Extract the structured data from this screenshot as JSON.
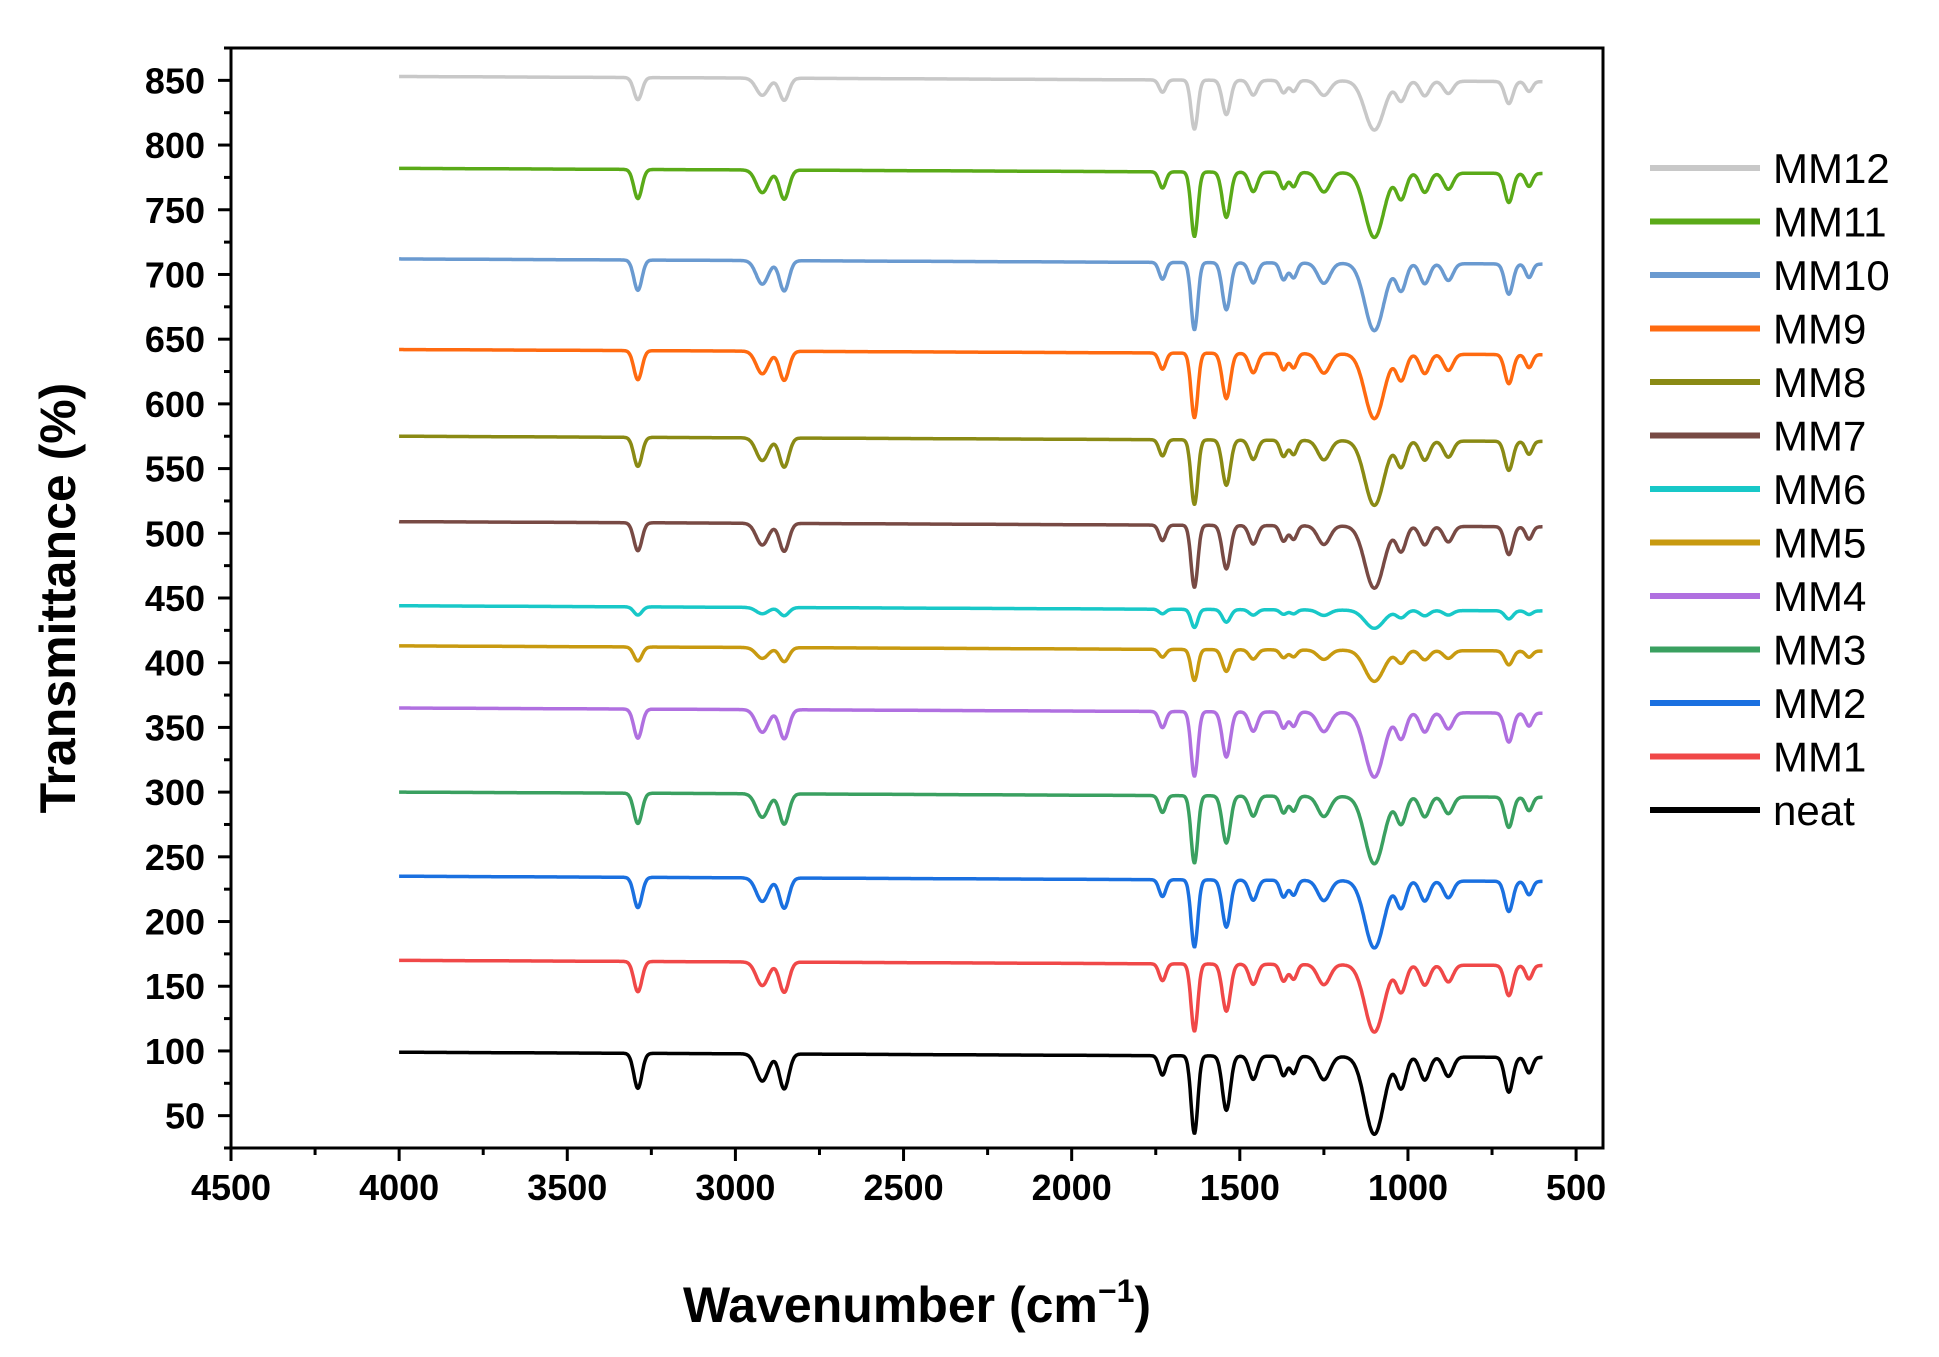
{
  "chart_data": {
    "type": "line",
    "title": "",
    "xlabel": "Wavenumber (cm",
    "xlabel_sup": "−1",
    "xlabel_close": ")",
    "ylabel": "Transmittance (%)",
    "xlim": [
      4500,
      420
    ],
    "ylim": [
      25,
      875
    ],
    "xticks": [
      4500,
      4000,
      3500,
      3000,
      2500,
      2000,
      1500,
      1000,
      500
    ],
    "xtick_labels": [
      "4500",
      "4000",
      "3500",
      "3000",
      "2500",
      "2000",
      "1500",
      "1000",
      "500"
    ],
    "yticks": [
      50,
      100,
      150,
      200,
      250,
      300,
      350,
      400,
      450,
      500,
      550,
      600,
      650,
      700,
      750,
      800,
      850
    ],
    "ytick_labels": [
      "50",
      "100",
      "150",
      "200",
      "250",
      "300",
      "350",
      "400",
      "450",
      "500",
      "550",
      "600",
      "650",
      "700",
      "750",
      "800",
      "850"
    ],
    "legend_position": "right",
    "x_range": [
      4000,
      600
    ],
    "bands": [
      {
        "wn": 3290,
        "width": 12,
        "depth": 0.45
      },
      {
        "wn": 2920,
        "width": 18,
        "depth": 0.35
      },
      {
        "wn": 2855,
        "width": 14,
        "depth": 0.45
      },
      {
        "wn": 1730,
        "width": 10,
        "depth": 0.25
      },
      {
        "wn": 1635,
        "width": 10,
        "depth": 1.0
      },
      {
        "wn": 1540,
        "width": 12,
        "depth": 0.7
      },
      {
        "wn": 1460,
        "width": 12,
        "depth": 0.3
      },
      {
        "wn": 1370,
        "width": 10,
        "depth": 0.25
      },
      {
        "wn": 1340,
        "width": 10,
        "depth": 0.22
      },
      {
        "wn": 1250,
        "width": 18,
        "depth": 0.3
      },
      {
        "wn": 1100,
        "width": 28,
        "depth": 1.0
      },
      {
        "wn": 1020,
        "width": 14,
        "depth": 0.4
      },
      {
        "wn": 950,
        "width": 14,
        "depth": 0.3
      },
      {
        "wn": 880,
        "width": 14,
        "depth": 0.25
      },
      {
        "wn": 700,
        "width": 12,
        "depth": 0.45
      },
      {
        "wn": 640,
        "width": 10,
        "depth": 0.2
      }
    ],
    "series": [
      {
        "name": "MM12",
        "color": "#c8c8c8",
        "baseline": 853,
        "amp": 38,
        "shift": 0
      },
      {
        "name": "MM11",
        "color": "#5aaa18",
        "baseline": 782,
        "amp": 50,
        "shift": 0
      },
      {
        "name": "MM10",
        "color": "#6a9ad0",
        "baseline": 712,
        "amp": 52,
        "shift": 0
      },
      {
        "name": "MM9",
        "color": "#ff6a10",
        "baseline": 642,
        "amp": 50,
        "shift": 0
      },
      {
        "name": "MM8",
        "color": "#8a8a14",
        "baseline": 575,
        "amp": 50,
        "shift": 0
      },
      {
        "name": "MM7",
        "color": "#784a44",
        "baseline": 509,
        "amp": 48,
        "shift": 0
      },
      {
        "name": "MM6",
        "color": "#18c8c8",
        "baseline": 444,
        "amp": 14,
        "shift": 0
      },
      {
        "name": "MM5",
        "color": "#c89a10",
        "baseline": 413,
        "amp": 24,
        "shift": 0
      },
      {
        "name": "MM4",
        "color": "#b070e0",
        "baseline": 365,
        "amp": 50,
        "shift": 0
      },
      {
        "name": "MM3",
        "color": "#3aa060",
        "baseline": 300,
        "amp": 52,
        "shift": 0
      },
      {
        "name": "MM2",
        "color": "#1a70e0",
        "baseline": 235,
        "amp": 52,
        "shift": 0
      },
      {
        "name": "MM1",
        "color": "#f04848",
        "baseline": 170,
        "amp": 52,
        "shift": 0
      },
      {
        "name": "neat",
        "color": "#000000",
        "baseline": 99,
        "amp": 60,
        "shift": 0
      }
    ]
  }
}
